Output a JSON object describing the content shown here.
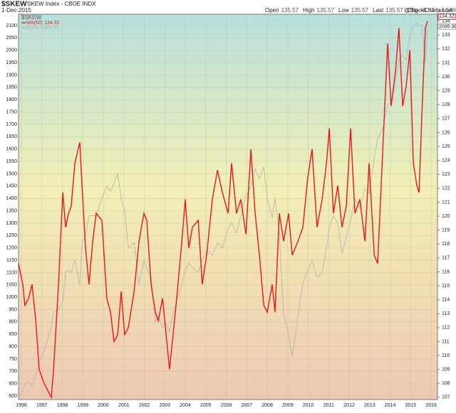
{
  "chart_data": {
    "type": "line",
    "title": "$SKEW",
    "subtitle": "SKEW Index - CBOE INDX",
    "date": "1-Dec-2015",
    "quote": [
      {
        "label": "Open",
        "value": "135.57"
      },
      {
        "label": "High",
        "value": "135.57"
      },
      {
        "label": "Low",
        "value": "135.57"
      },
      {
        "label": "Last",
        "value": "135.57"
      },
      {
        "label": "Chg",
        "value": "+8.32 (+6.54%)"
      }
    ],
    "credit": "@StockCharts.com",
    "x": [
      1995.86,
      1996.07,
      1996.17,
      1996.35,
      1996.52,
      1996.7,
      1996.87,
      1997.11,
      1997.46,
      1997.57,
      1997.81,
      1998.02,
      1998.16,
      1998.3,
      1998.43,
      1998.61,
      1998.85,
      1998.96,
      1999.13,
      1999.3,
      1999.48,
      1999.65,
      1999.93,
      2000.17,
      2000.35,
      2000.52,
      2000.7,
      2000.87,
      2001.04,
      2001.22,
      2001.5,
      2001.74,
      2001.98,
      2002.12,
      2002.33,
      2002.54,
      2002.68,
      2002.89,
      2003.03,
      2003.23,
      2003.37,
      2003.58,
      2003.83,
      2004.0,
      2004.17,
      2004.35,
      2004.63,
      2004.83,
      2005.04,
      2005.32,
      2005.57,
      2005.81,
      2006.09,
      2006.26,
      2006.5,
      2006.71,
      2006.96,
      2007.2,
      2007.41,
      2007.62,
      2007.83,
      2008.0,
      2008.24,
      2008.38,
      2008.59,
      2008.8,
      2009.04,
      2009.22,
      2009.5,
      2009.74,
      2009.98,
      2010.19,
      2010.43,
      2010.68,
      2010.89,
      2011.03,
      2011.23,
      2011.44,
      2011.65,
      2011.86,
      2012.07,
      2012.28,
      2012.52,
      2012.77,
      2012.97,
      2013.22,
      2013.39,
      2013.67,
      2013.88,
      2014.05,
      2014.26,
      2014.43,
      2014.61,
      2014.78,
      2014.96,
      2015.13,
      2015.3,
      2015.41,
      2015.55,
      2015.72,
      2015.83
    ],
    "series": [
      {
        "name": "$SPX",
        "color": "#b0b0b0",
        "axis": "y",
        "last": {
          "value": 2095.9,
          "label": "2095.90"
        },
        "values": [
          600,
          620,
          650,
          660,
          640,
          680,
          740,
          780,
          880,
          940,
          950,
          980,
          1100,
          1110,
          1100,
          1150,
          1050,
          1220,
          1250,
          1330,
          1330,
          1330,
          1400,
          1450,
          1430,
          1460,
          1500,
          1400,
          1350,
          1200,
          1220,
          1050,
          1150,
          1120,
          1080,
          900,
          920,
          880,
          900,
          860,
          920,
          990,
          1050,
          1110,
          1140,
          1120,
          1100,
          1150,
          1190,
          1170,
          1220,
          1200,
          1280,
          1300,
          1260,
          1330,
          1410,
          1450,
          1520,
          1480,
          1530,
          1400,
          1320,
          1400,
          1260,
          930,
          850,
          760,
          920,
          1060,
          1110,
          1150,
          1080,
          1100,
          1200,
          1280,
          1330,
          1300,
          1180,
          1240,
          1310,
          1400,
          1360,
          1440,
          1420,
          1560,
          1640,
          1690,
          1780,
          1790,
          1870,
          1960,
          1980,
          1960,
          2060,
          2100,
          2110,
          2100,
          2100,
          1950,
          2090
        ]
      },
      {
        "name": "MA(50)",
        "color": "#e8161b",
        "axis": "y2",
        "last": 134.32,
        "values": [
          116.6,
          115.1,
          113.6,
          114.1,
          115.1,
          112.5,
          109.0,
          108.0,
          107.0,
          109.0,
          115.1,
          121.7,
          119.2,
          120.2,
          120.7,
          123.8,
          125.3,
          122.2,
          117.7,
          115.1,
          118.2,
          120.2,
          119.7,
          114.1,
          113.1,
          111.0,
          111.5,
          114.6,
          111.5,
          112.0,
          114.6,
          118.2,
          120.2,
          119.7,
          115.1,
          113.1,
          112.5,
          114.1,
          112.0,
          109.0,
          111.0,
          114.1,
          118.2,
          121.2,
          117.7,
          119.2,
          119.7,
          115.1,
          117.2,
          121.2,
          123.3,
          121.7,
          120.2,
          123.8,
          120.2,
          121.2,
          118.7,
          124.8,
          120.2,
          117.2,
          113.6,
          113.1,
          115.1,
          113.1,
          120.2,
          118.2,
          120.2,
          117.2,
          118.2,
          119.2,
          122.8,
          124.8,
          119.2,
          121.2,
          123.8,
          126.3,
          120.2,
          122.2,
          119.2,
          120.7,
          126.3,
          120.2,
          121.2,
          118.2,
          123.8,
          117.2,
          116.6,
          125.8,
          132.4,
          127.9,
          130.4,
          133.5,
          127.9,
          129.3,
          131.9,
          123.8,
          122.2,
          121.7,
          127.3,
          133.5,
          134.0
        ]
      }
    ],
    "xlim": [
      1995.86,
      2016.31
    ],
    "xticks": [
      1996,
      1997,
      1998,
      1999,
      2000,
      2001,
      2002,
      2003,
      2004,
      2005,
      2006,
      2007,
      2008,
      2009,
      2010,
      2011,
      2012,
      2013,
      2014,
      2015,
      2016
    ],
    "ylim": [
      586,
      2146
    ],
    "yticks": [
      600,
      650,
      700,
      750,
      800,
      850,
      900,
      950,
      1000,
      1050,
      1100,
      1150,
      1200,
      1250,
      1300,
      1350,
      1400,
      1450,
      1500,
      1550,
      1600,
      1650,
      1700,
      1750,
      1800,
      1850,
      1900,
      1950,
      2000,
      2050,
      2100
    ],
    "y2lim": [
      106.84,
      134.49
    ],
    "y2ticks": [
      107,
      108,
      109,
      110,
      111,
      112,
      113,
      114,
      115,
      116,
      117,
      118,
      119,
      120,
      121,
      122,
      123,
      124,
      125,
      126,
      127,
      128,
      129,
      130,
      131,
      132,
      133,
      134
    ],
    "grid": true
  }
}
